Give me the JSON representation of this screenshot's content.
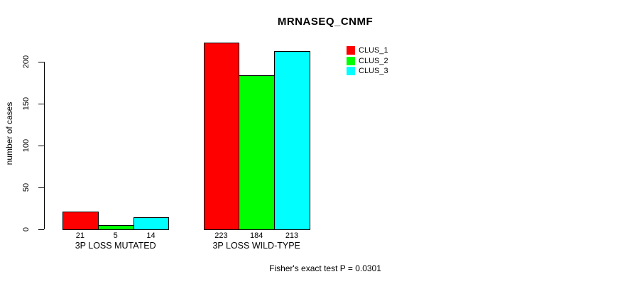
{
  "chart_data": {
    "type": "bar",
    "title": "MRNASEQ_CNMF",
    "xlabel": "",
    "ylabel": "number of cases",
    "ylim": [
      0,
      200
    ],
    "yticks": [
      0,
      50,
      100,
      150,
      200
    ],
    "categories": [
      "3P LOSS MUTATED",
      "3P LOSS WILD-TYPE"
    ],
    "series": [
      {
        "name": "CLUS_1",
        "color": "#FF0000",
        "values": [
          21,
          223
        ]
      },
      {
        "name": "CLUS_2",
        "color": "#00FF00",
        "values": [
          5,
          184
        ]
      },
      {
        "name": "CLUS_3",
        "color": "#00FFFF",
        "values": [
          14,
          213
        ]
      }
    ],
    "bar_value_labels": [
      [
        "21",
        "5",
        "14"
      ],
      [
        "223",
        "184",
        "213"
      ]
    ],
    "legend": [
      "CLUS_1",
      "CLUS_2",
      "CLUS_3"
    ],
    "legend_position": "top-right",
    "grid": false,
    "annotation": "Fisher's exact test P = 0.0301"
  },
  "colors": {
    "background": "#FFFFFF",
    "axis": "#000000",
    "text": "#000000",
    "clus_1": "#FF0000",
    "clus_2": "#00FF00",
    "clus_3": "#00FFFF"
  }
}
